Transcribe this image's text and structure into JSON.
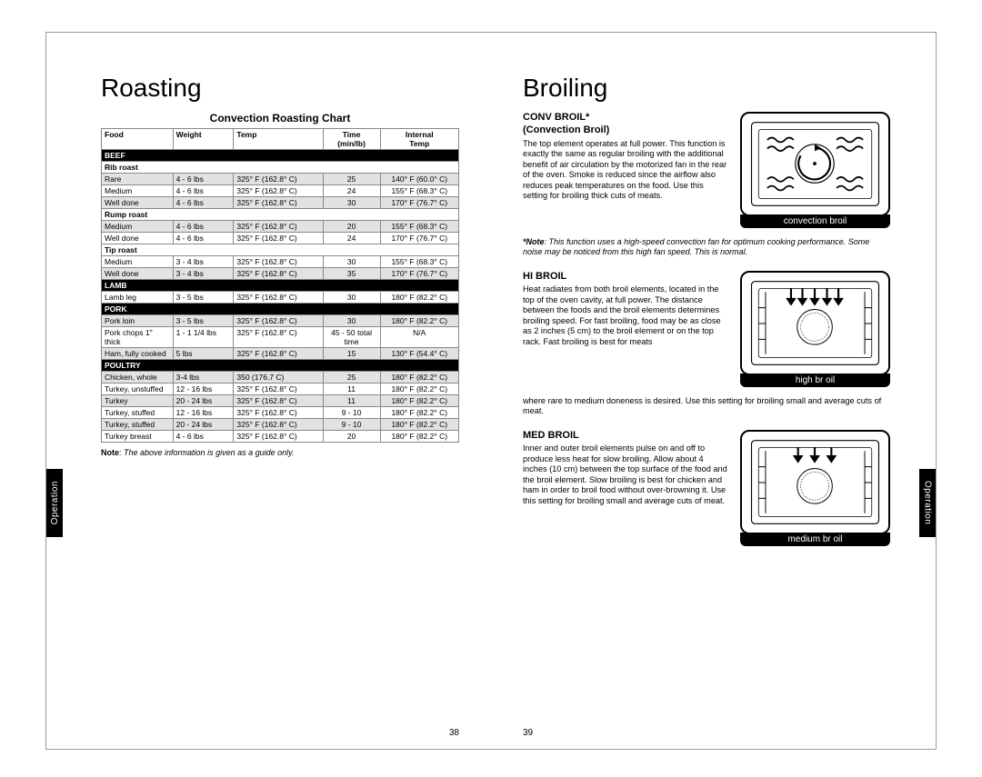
{
  "leftPage": {
    "title": "Roasting",
    "chartTitle": "Convection Roasting Chart",
    "headers": {
      "food": "Food",
      "weight": "Weight",
      "temp": "Temp",
      "time": "Time (min/lb)",
      "internal": "Internal Temp"
    },
    "note": "The above information is given as a guide only.",
    "noteLabel": "Note",
    "pageNumber": "38",
    "sideTab": "Operation",
    "sections": [
      {
        "section": "BEEF",
        "rows": [
          {
            "sub": "Rib roast"
          },
          {
            "indent": true,
            "food": "Rare",
            "weight": "4 - 6 lbs",
            "temp": "325° F (162.8° C)",
            "time": "25",
            "internal": "140° F (60.0° C)",
            "odd": true
          },
          {
            "indent": true,
            "food": "Medium",
            "weight": "4 - 6 lbs",
            "temp": "325° F (162.8° C)",
            "time": "24",
            "internal": "155° F (68.3° C)"
          },
          {
            "indent": true,
            "food": "Well done",
            "weight": "4 - 6 lbs",
            "temp": "325° F (162.8° C)",
            "time": "30",
            "internal": "170° F (76.7° C)",
            "odd": true
          },
          {
            "sub": "Rump roast"
          },
          {
            "indent": true,
            "food": "Medium",
            "weight": "4 - 6 lbs",
            "temp": "325° F (162.8° C)",
            "time": "20",
            "internal": "155° F (68.3° C)",
            "odd": true
          },
          {
            "indent": true,
            "food": "Well done",
            "weight": "4 - 6 lbs",
            "temp": "325° F (162.8° C)",
            "time": "24",
            "internal": "170° F (76.7° C)"
          },
          {
            "sub": "Tip roast"
          },
          {
            "indent": true,
            "food": "Medium",
            "weight": "3 - 4 lbs",
            "temp": "325° F (162.8° C)",
            "time": "30",
            "internal": "155° F (68.3° C)"
          },
          {
            "indent": true,
            "food": "Well done",
            "weight": "3 - 4 lbs",
            "temp": "325° F (162.8° C)",
            "time": "35",
            "internal": "170° F (76.7° C)",
            "odd": true
          }
        ]
      },
      {
        "section": "LAMB",
        "rows": [
          {
            "food": "Lamb leg",
            "weight": "3 - 5 lbs",
            "temp": "325° F (162.8° C)",
            "time": "30",
            "internal": "180° F (82.2° C)"
          }
        ]
      },
      {
        "section": "PORK",
        "rows": [
          {
            "food": "Pork loin",
            "weight": "3 - 5 lbs",
            "temp": "325° F (162.8° C)",
            "time": "30",
            "internal": "180° F (82.2° C)",
            "odd": true
          },
          {
            "food": "Pork chops 1\" thick",
            "weight": "1 - 1 1/4 lbs",
            "temp": "325° F (162.8° C)",
            "time": "45 - 50 total time",
            "internal": "N/A"
          },
          {
            "food": "Ham, fully cooked",
            "weight": "5 lbs",
            "temp": "325° F (162.8° C)",
            "time": "15",
            "internal": "130° F (54.4° C)",
            "odd": true
          }
        ]
      },
      {
        "section": "POULTRY",
        "rows": [
          {
            "food": "Chicken, whole",
            "weight": "3-4 lbs",
            "temp": "350 (176.7 C)",
            "time": "25",
            "internal": "180° F (82.2° C)",
            "odd": true
          },
          {
            "food": "Turkey, unstuffed",
            "weight": "12 - 16 lbs",
            "temp": "325° F (162.8° C)",
            "time": "11",
            "internal": "180° F (82.2° C)"
          },
          {
            "food": "Turkey",
            "weight": "20 - 24 lbs",
            "temp": "325° F (162.8° C)",
            "time": "11",
            "internal": "180° F (82.2° C)",
            "odd": true
          },
          {
            "food": "Turkey, stuffed",
            "weight": "12 - 16 lbs",
            "temp": "325° F (162.8° C)",
            "time": "9 - 10",
            "internal": "180° F (82.2° C)"
          },
          {
            "food": "Turkey, stuffed",
            "weight": "20 - 24 lbs",
            "temp": "325° F (162.8° C)",
            "time": "9 - 10",
            "internal": "180° F (82.2° C)",
            "odd": true
          },
          {
            "food": "Turkey breast",
            "weight": "4 - 6 lbs",
            "temp": "325° F (162.8° C)",
            "time": "20",
            "internal": "180° F (82.2° C)"
          }
        ]
      }
    ]
  },
  "rightPage": {
    "title": "Broiling",
    "pageNumber": "39",
    "sideTab": "Operation",
    "convBroil": {
      "heading": "CONV BROIL*",
      "subheading": "(Convection Broil)",
      "body": "The top element operates at full power. This function is exactly the same as regular broiling with the additional benefit of air circulation by the motorized fan in the rear of the oven. Smoke is reduced since the airflow also reduces peak temperatures on the food. Use this setting for broiling thick cuts of meats.",
      "diagramLabel": "convection broil"
    },
    "convNote": "This function uses a high-speed convection fan for optimum cooking performance. Some noise may be noticed from this high fan speed. This is normal.",
    "convNoteLabel": "*Note",
    "hiBroil": {
      "heading": "HI BROIL",
      "body": "Heat radiates from both broil elements, located in the top of the oven cavity, at full power. The distance between the foods and the broil elements determines broiling speed. For fast broiling, food may be as close as 2 inches (5 cm) to the broil element or on the top rack. Fast broiling is best for meats",
      "continuation": "where rare to medium doneness is desired. Use this setting for broiling small and average cuts of meat.",
      "diagramLabel": "high br oil"
    },
    "medBroil": {
      "heading": "MED BROIL",
      "body": "Inner and outer broil elements pulse on and off to produce less heat for slow broiling. Allow about 4 inches (10 cm) between the top surface of the food and the broil element. Slow broiling is best for chicken and ham in order to broil food without over-browning it. Use this setting for broiling small and average cuts of meat.",
      "diagramLabel": "medium br oil"
    }
  }
}
